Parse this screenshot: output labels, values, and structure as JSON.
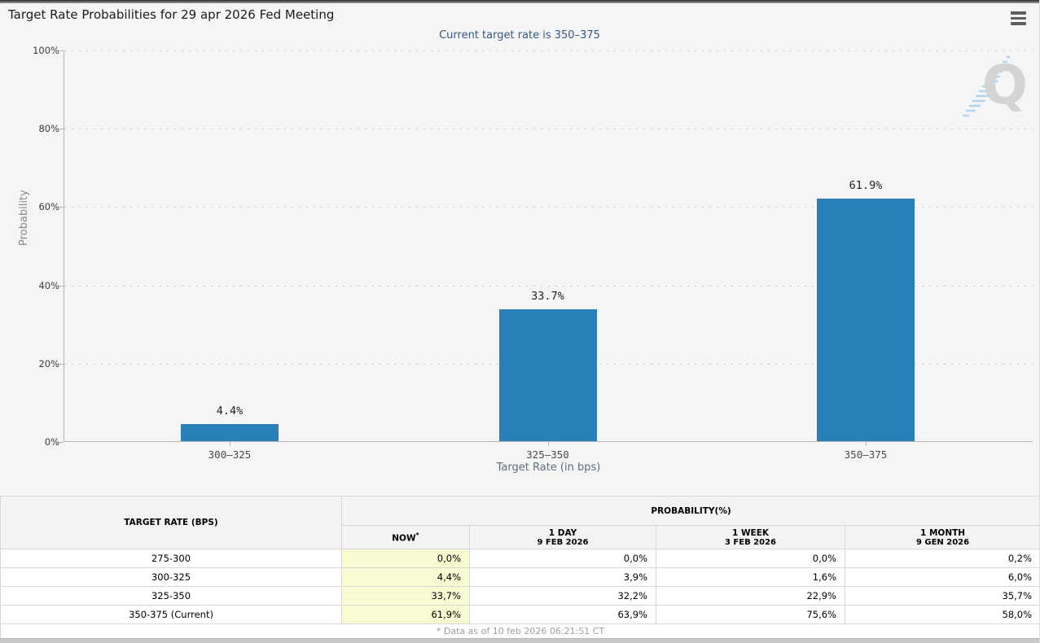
{
  "header": {
    "title": "Target Rate Probabilities for 29 apr 2026 Fed Meeting",
    "menu_icon": "hamburger-icon"
  },
  "chart_data": {
    "type": "bar",
    "title": "Current target rate is 350–375",
    "categories": [
      "300–325",
      "325–350",
      "350–375"
    ],
    "values": [
      4.4,
      33.7,
      61.9
    ],
    "xlabel": "Target Rate (in bps)",
    "ylabel": "Probability",
    "ylim": [
      0,
      100
    ],
    "ytick_step": 20,
    "ytick_suffix": "%",
    "grid": "dotted-horizontal",
    "legend": "none",
    "bar_color": "#2980b9",
    "watermark_letter": "Q"
  },
  "table": {
    "col1_header": "TARGET RATE (BPS)",
    "group_header": "PROBABILITY(%)",
    "columns": [
      {
        "label": "NOW",
        "sup": "*",
        "sub": ""
      },
      {
        "label": "1 DAY",
        "sub": "9 FEB 2026"
      },
      {
        "label": "1 WEEK",
        "sub": "3 FEB 2026"
      },
      {
        "label": "1 MONTH",
        "sub": "9 GEN 2026"
      }
    ],
    "rows": [
      {
        "target": "275-300",
        "now": "0,0%",
        "day": "0,0%",
        "week": "0,0%",
        "month": "0,2%"
      },
      {
        "target": "300-325",
        "now": "4,4%",
        "day": "3,9%",
        "week": "1,6%",
        "month": "6,0%"
      },
      {
        "target": "325-350",
        "now": "33,7%",
        "day": "32,2%",
        "week": "22,9%",
        "month": "35,7%"
      },
      {
        "target": "350-375 (Current)",
        "now": "61,9%",
        "day": "63,9%",
        "week": "75,6%",
        "month": "58,0%"
      }
    ],
    "now_col_bg": "#fafad2"
  },
  "footer": {
    "note": "* Data as of 10 feb 2026 06:21:51 CT"
  },
  "colors": {
    "bar": "#2980b9",
    "subtitle": "#35597f",
    "now_highlight": "#fafad2"
  }
}
